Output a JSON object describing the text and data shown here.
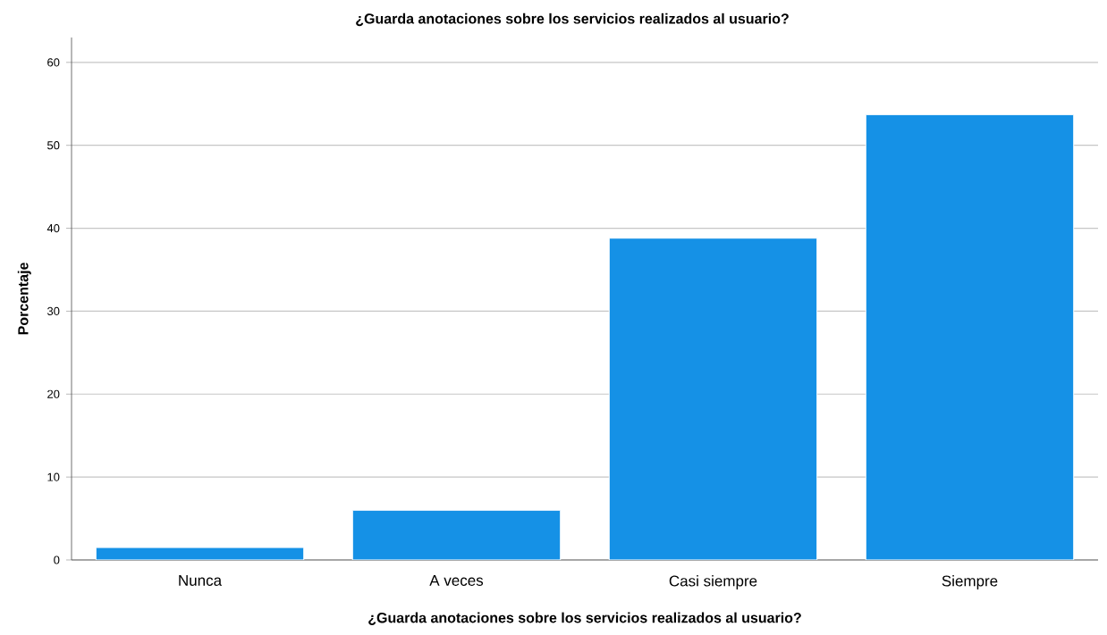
{
  "chart_data": {
    "type": "bar",
    "title": "¿Guarda anotaciones sobre  los servicios realizados al usuario?",
    "xlabel": "¿Guarda anotaciones sobre  los servicios realizados al usuario?",
    "ylabel": "Porcentaje",
    "categories": [
      "Nunca",
      "A veces",
      "Casi siempre",
      "Siempre"
    ],
    "values": [
      1.5,
      6.0,
      38.8,
      53.7
    ],
    "color": "#1591e6",
    "ylim": [
      0,
      63
    ],
    "yticks": [
      0,
      10,
      20,
      30,
      40,
      50,
      60
    ],
    "grid": "y"
  }
}
